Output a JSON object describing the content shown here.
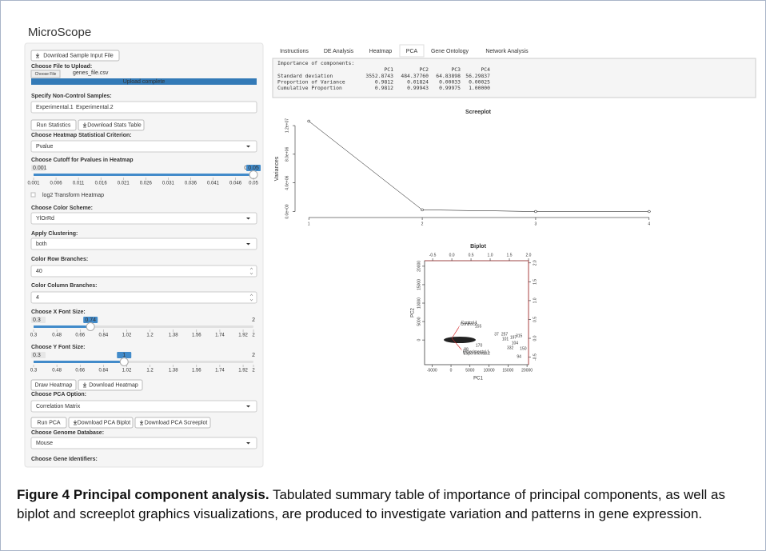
{
  "app": {
    "title": "MicroScope"
  },
  "sidebar": {
    "sample_button": "Download Sample Input File",
    "upload_label": "Choose File to Upload:",
    "file_button": "Choose File",
    "file_name": "genes_file.csv",
    "upload_status": "Upload complete",
    "samples_label": "Specify Non-Control Samples:",
    "samples": [
      "Experimental.1",
      "Experimental.2"
    ],
    "stats_buttons": [
      "Run Statistics",
      "Download Stats Table"
    ],
    "criterion_label": "Choose Heatmap Statistical Criterion:",
    "criterion": "Pvalue",
    "cutoff_slider": {
      "label": "Choose Cutoff for Pvalues in Heatmap",
      "min": 0.001,
      "max": 0.05,
      "value": 0.05,
      "ticks": [
        0.001,
        0.006,
        0.011,
        0.016,
        0.021,
        0.026,
        0.031,
        0.036,
        0.041,
        0.046,
        0.05
      ]
    },
    "log2_checkbox": "log2 Transform Heatmap",
    "color_label": "Choose Color Scheme:",
    "color": "YlOrRd",
    "clustering_label": "Apply Clustering:",
    "clustering": "both",
    "row_branches_label": "Color Row Branches:",
    "row_branches": 40,
    "column_branches_label": "Color Column Branches:",
    "column_branches": 4,
    "x_font_slider": {
      "label": "Choose X Font Size:",
      "min": 0.3,
      "max": 2,
      "value": 0.74,
      "ticks": [
        0.3,
        0.48,
        0.66,
        0.84,
        1.02,
        1.2,
        1.38,
        1.56,
        1.74,
        1.92,
        2
      ]
    },
    "y_font_slider": {
      "label": "Choose Y Font Size:",
      "min": 0.3,
      "max": 2,
      "value": 1,
      "ticks": [
        0.3,
        0.48,
        0.66,
        0.84,
        1.02,
        1.2,
        1.38,
        1.56,
        1.74,
        1.92,
        2
      ]
    },
    "heatmap_buttons": [
      "Draw Heatmap",
      "Download Heatmap"
    ],
    "pca_label": "Choose PCA Option:",
    "pca_option": "Correlation Matrix",
    "pca_buttons": [
      "Run PCA",
      "Download PCA Biplot",
      "Download PCA Screeplot"
    ],
    "genome_label": "Choose Genome Database:",
    "genome": "Mouse",
    "identifiers_label": "Choose Gene Identifiers:"
  },
  "tabs": {
    "items": [
      "Instructions",
      "DE Analysis",
      "Heatmap",
      "PCA",
      "Gene Ontology",
      "Network Analysis"
    ],
    "active": 3
  },
  "pca_summary": {
    "heading": "Importance of components:",
    "columns": [
      "PC1",
      "PC2",
      "PC3",
      "PC4"
    ],
    "rows": [
      {
        "label": "Standard deviation",
        "values": [
          "3552.8743",
          "484.37760",
          "64.83898",
          "56.29837"
        ]
      },
      {
        "label": "Proportion of Variance",
        "values": [
          "0.9812",
          "0.01824",
          "0.00033",
          "0.00025"
        ]
      },
      {
        "label": "Cumulative Proportion",
        "values": [
          "0.9812",
          "0.99943",
          "0.99975",
          "1.00000"
        ]
      }
    ]
  },
  "screeplot": {
    "type": "line",
    "title": "Screeplot",
    "y_label": "Variances",
    "x": [
      1,
      2,
      3,
      4
    ],
    "values": [
      12622912,
      234622,
      4204,
      3169
    ],
    "xlim": [
      0.9,
      4.1
    ],
    "ylim": [
      -500000,
      12900000
    ],
    "xticks": [
      1,
      2,
      3,
      4
    ],
    "yticks": [
      {
        "value": 0,
        "label": "0.0e+00"
      },
      {
        "value": 4000000,
        "label": "4.0e+06"
      },
      {
        "value": 8000000,
        "label": "8.0e+06"
      },
      {
        "value": 12000000,
        "label": "1.2e+07"
      }
    ]
  },
  "biplot": {
    "type": "scatter",
    "title": "Biplot",
    "x_label": "PC1",
    "y_label": "PC2",
    "xlim": [
      -6950,
      20400
    ],
    "ylim": [
      -6700,
      21500
    ],
    "xticks": [
      -5000,
      0,
      5000,
      10000,
      15000,
      20000
    ],
    "yticks": [
      0,
      5000,
      10000,
      15000,
      20000
    ],
    "x2lim": [
      -0.71,
      2.0
    ],
    "y2lim": [
      -0.7,
      2.06
    ],
    "x2ticks": [
      -0.5,
      {
        "value": 0,
        "label": "0.0"
      },
      0.5,
      {
        "value": 1,
        "label": "1.0"
      },
      1.5,
      {
        "value": 2,
        "label": "2.0"
      }
    ],
    "y2ticks": [
      -0.5,
      {
        "value": 0,
        "label": "0.0"
      },
      0.5,
      {
        "value": 1,
        "label": "1.0"
      },
      1.5,
      {
        "value": 2,
        "label": "2.0"
      }
    ],
    "loading_color": "#d62728",
    "points": [
      {
        "label": "155",
        "x": 7160,
        "y": 3700
      },
      {
        "label": "37",
        "x": 12000,
        "y": 1500
      },
      {
        "label": "257",
        "x": 14100,
        "y": 1500
      },
      {
        "label": "315",
        "x": 17900,
        "y": 1100
      },
      {
        "label": "197",
        "x": 16400,
        "y": 650
      },
      {
        "label": "101",
        "x": 14300,
        "y": 200
      },
      {
        "label": "104",
        "x": 16800,
        "y": -870
      },
      {
        "label": "332",
        "x": 15600,
        "y": -2170
      },
      {
        "label": "150",
        "x": 19000,
        "y": -2400
      },
      {
        "label": "94",
        "x": 17900,
        "y": -4560
      },
      {
        "label": "170",
        "x": 7370,
        "y": -1520
      },
      {
        "label": "88",
        "x": 4000,
        "y": -2600
      }
    ],
    "loadings": [
      {
        "name": "Control.1",
        "x": 0.2,
        "y": 0.33
      },
      {
        "name": "Control.2",
        "x": 0.18,
        "y": 0.28
      },
      {
        "name": "Experimental.1",
        "x": 0.24,
        "y": -0.28
      },
      {
        "name": "Experimental.2",
        "x": 0.26,
        "y": -0.32
      }
    ]
  },
  "caption": {
    "label": "Figure 4",
    "title": "Principal component analysis.",
    "text": "Tabulated summary table of importance of principal components, as well as biplot and screeplot graphics visualizations, are produced to investigate variation and patterns in gene expression."
  }
}
